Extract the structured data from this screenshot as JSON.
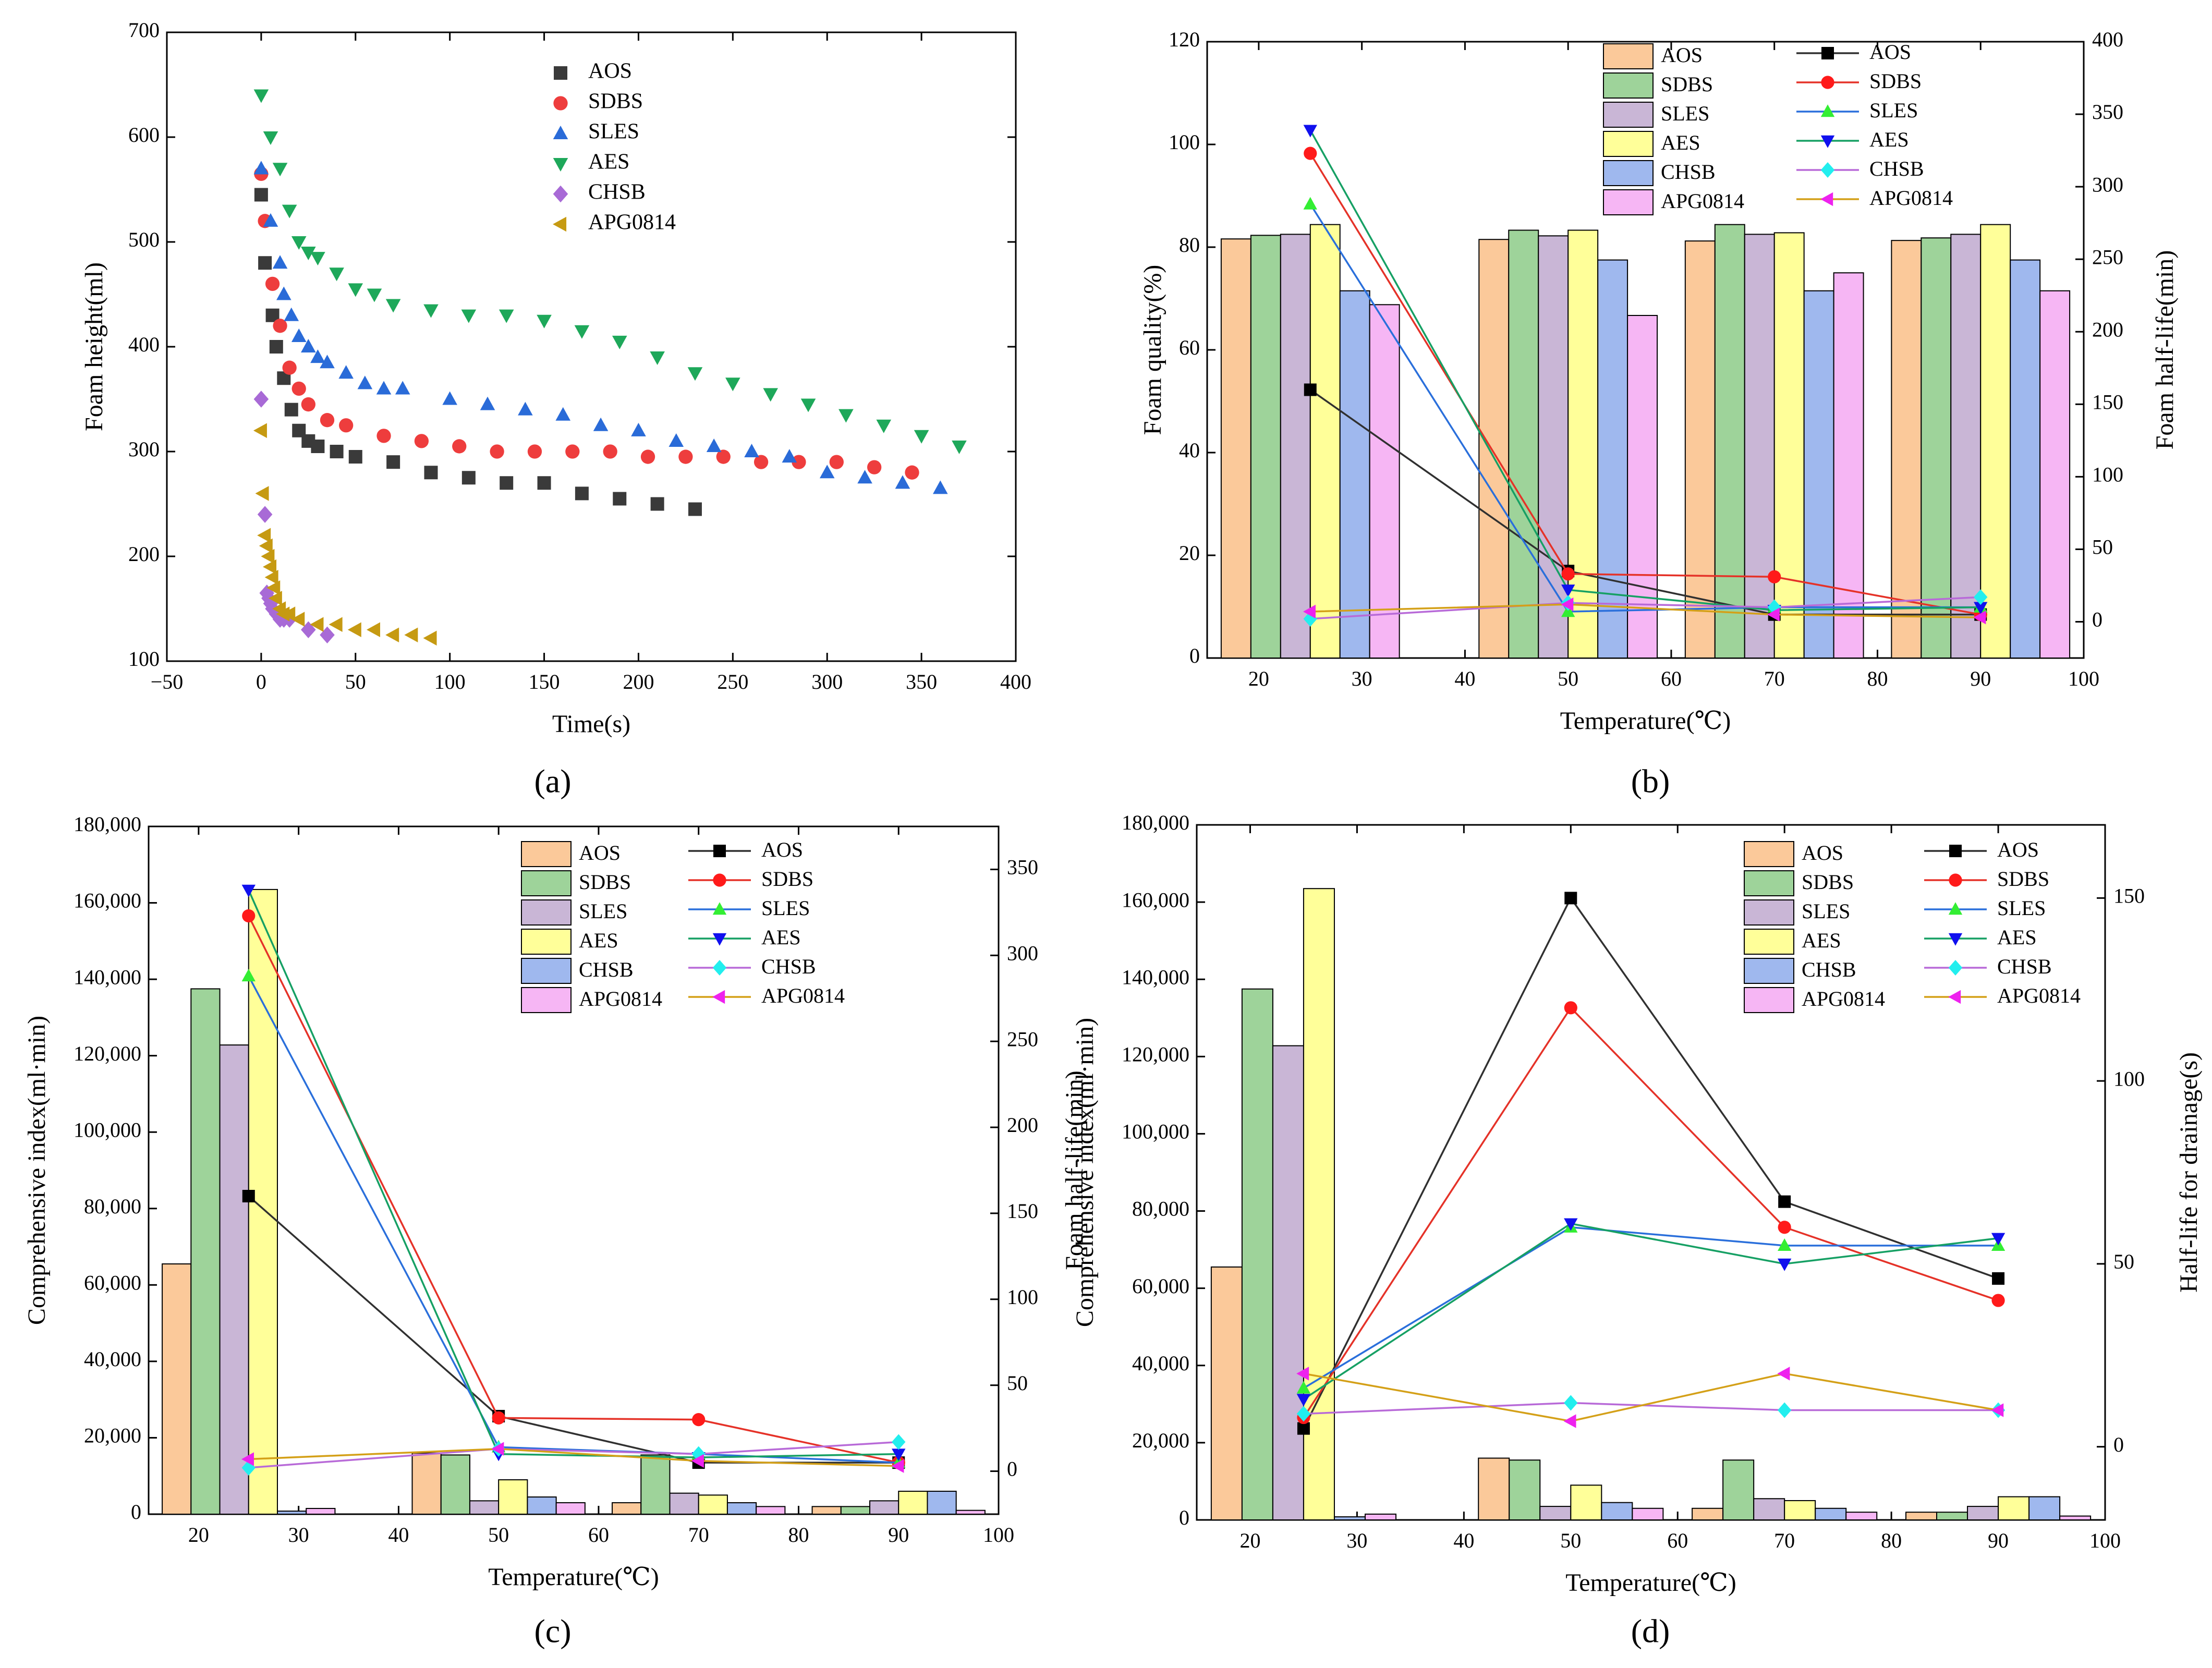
{
  "colors": {
    "AOS": "#3a3a3a",
    "SDBS": "#ee3d3d",
    "SLES": "#2a6bd8",
    "AES": "#1ea85a",
    "CHSB": "#a86ad6",
    "APG0814": "#c69a12",
    "bar_AOS": "#fbc99a",
    "bar_SDBS": "#9ed39a",
    "bar_SLES": "#c9b6d6",
    "bar_AES": "#ffff99",
    "bar_CHSB": "#9fb8ee",
    "bar_APG0814": "#f6b6f4",
    "line_AOS": "#303030",
    "line_SDBS": "#e53228",
    "line_SLES": "#2a6fdb",
    "line_AES": "#16a064",
    "line_CHSB": "#b86ad8",
    "line_APG0814": "#d4a018",
    "mk_AOS": "#000000",
    "mk_SDBS": "#ff1a1a",
    "mk_SLES": "#33ee33",
    "mk_AES": "#1010ee",
    "mk_CHSB": "#22eeee",
    "mk_APG0814": "#ee22ee"
  },
  "chart_data": [
    {
      "id": "a",
      "panel_label": "(a)",
      "type": "scatter",
      "xlabel": "Time(s)",
      "ylabel": "Foam height(ml)",
      "xlim": [
        -50,
        400
      ],
      "ylim": [
        100,
        700
      ],
      "xticks": [
        -50,
        0,
        50,
        100,
        150,
        200,
        250,
        300,
        350,
        400
      ],
      "xtick_labels": [
        "−50",
        "0",
        "50",
        "100",
        "150",
        "200",
        "250",
        "300",
        "350",
        "400"
      ],
      "yticks": [
        100,
        200,
        300,
        400,
        500,
        600,
        700
      ],
      "ytick_labels": [
        "100",
        "200",
        "300",
        "400",
        "500",
        "600",
        "700"
      ],
      "legend": [
        "AOS",
        "SDBS",
        "SLES",
        "AES",
        "CHSB",
        "APG0814"
      ],
      "series": [
        {
          "name": "AOS",
          "marker": "square",
          "x": [
            0,
            2,
            6,
            8,
            12,
            16,
            20,
            25,
            30,
            40,
            50,
            70,
            90,
            110,
            130,
            150,
            170,
            190,
            210,
            230
          ],
          "y": [
            545,
            480,
            430,
            400,
            370,
            340,
            320,
            310,
            305,
            300,
            295,
            290,
            280,
            275,
            270,
            270,
            260,
            255,
            250,
            245
          ]
        },
        {
          "name": "SDBS",
          "marker": "circle",
          "x": [
            0,
            2,
            6,
            10,
            15,
            20,
            25,
            35,
            45,
            65,
            85,
            105,
            125,
            145,
            165,
            185,
            205,
            225,
            245,
            265,
            285,
            305,
            325,
            345
          ],
          "y": [
            565,
            520,
            460,
            420,
            380,
            360,
            345,
            330,
            325,
            315,
            310,
            305,
            300,
            300,
            300,
            300,
            295,
            295,
            295,
            290,
            290,
            290,
            285,
            280
          ]
        },
        {
          "name": "SLES",
          "marker": "triangle-up",
          "x": [
            0,
            5,
            10,
            12,
            16,
            20,
            25,
            30,
            35,
            45,
            55,
            65,
            75,
            100,
            120,
            140,
            160,
            180,
            200,
            220,
            240,
            260,
            280,
            300,
            320,
            340,
            360
          ],
          "y": [
            570,
            520,
            480,
            450,
            430,
            410,
            400,
            390,
            385,
            375,
            365,
            360,
            360,
            350,
            345,
            340,
            335,
            325,
            320,
            310,
            305,
            300,
            295,
            280,
            275,
            270,
            265
          ]
        },
        {
          "name": "AES",
          "marker": "triangle-down",
          "x": [
            0,
            5,
            10,
            15,
            20,
            25,
            30,
            40,
            50,
            60,
            70,
            90,
            110,
            130,
            150,
            170,
            190,
            210,
            230,
            250,
            270,
            290,
            310,
            330,
            350,
            370
          ],
          "y": [
            640,
            600,
            570,
            530,
            500,
            490,
            485,
            470,
            455,
            450,
            440,
            435,
            430,
            430,
            425,
            415,
            405,
            390,
            375,
            365,
            355,
            345,
            335,
            325,
            315,
            305
          ]
        },
        {
          "name": "CHSB",
          "marker": "diamond",
          "x": [
            0,
            2,
            3,
            4,
            5,
            6,
            8,
            10,
            12,
            15,
            25,
            35
          ],
          "y": [
            350,
            240,
            165,
            160,
            155,
            150,
            145,
            140,
            140,
            140,
            130,
            125
          ]
        },
        {
          "name": "APG0814",
          "marker": "triangle-left",
          "x": [
            0,
            1,
            2,
            3,
            4,
            5,
            6,
            7,
            8,
            10,
            12,
            15,
            20,
            30,
            40,
            50,
            60,
            70,
            80,
            90
          ],
          "y": [
            320,
            260,
            220,
            210,
            200,
            190,
            180,
            170,
            160,
            150,
            145,
            145,
            140,
            135,
            135,
            130,
            130,
            125,
            125,
            122
          ]
        }
      ]
    },
    {
      "id": "b",
      "panel_label": "(b)",
      "type": "bar",
      "xlabel": "Temperature(℃)",
      "ylabel": "Foam quality(%)",
      "y2label": "Foam half-life(min)",
      "xlim": [
        15,
        100
      ],
      "ylim": [
        0,
        120
      ],
      "y2lim": [
        -25,
        400
      ],
      "xticks": [
        20,
        30,
        40,
        50,
        60,
        70,
        80,
        90,
        100
      ],
      "xtick_labels": [
        "20",
        "30",
        "40",
        "50",
        "60",
        "70",
        "80",
        "90",
        "100"
      ],
      "yticks": [
        0,
        20,
        40,
        60,
        80,
        100,
        120
      ],
      "ytick_labels": [
        "0",
        "20",
        "40",
        "60",
        "80",
        "100",
        "120"
      ],
      "y2ticks": [
        0,
        50,
        100,
        150,
        200,
        250,
        300,
        350,
        400
      ],
      "y2tick_labels": [
        "0",
        "50",
        "100",
        "150",
        "200",
        "250",
        "300",
        "350",
        "400"
      ],
      "groups": [
        25,
        50,
        70,
        90
      ],
      "bars": [
        {
          "name": "AOS",
          "values": [
            81.6,
            81.5,
            81.2,
            81.3
          ]
        },
        {
          "name": "SDBS",
          "values": [
            82.3,
            83.3,
            84.4,
            81.8
          ]
        },
        {
          "name": "SLES",
          "values": [
            82.5,
            82.2,
            82.5,
            82.5
          ]
        },
        {
          "name": "AES",
          "values": [
            84.4,
            83.3,
            82.8,
            84.4
          ]
        },
        {
          "name": "CHSB",
          "values": [
            71.5,
            77.5,
            71.5,
            77.5
          ]
        },
        {
          "name": "APG0814",
          "values": [
            68.8,
            66.7,
            75.0,
            71.5
          ]
        }
      ],
      "lines": [
        {
          "name": "AOS",
          "marker": "square",
          "values": [
            160,
            35,
            5,
            5
          ]
        },
        {
          "name": "SDBS",
          "marker": "circle",
          "values": [
            323,
            33,
            31,
            5
          ]
        },
        {
          "name": "SLES",
          "marker": "triangle-up",
          "values": [
            288,
            7,
            10,
            10
          ]
        },
        {
          "name": "AES",
          "marker": "triangle-down",
          "values": [
            339,
            22,
            8,
            10
          ]
        },
        {
          "name": "CHSB",
          "marker": "diamond",
          "values": [
            2,
            13,
            10,
            17
          ]
        },
        {
          "name": "APG0814",
          "marker": "triangle-left",
          "values": [
            7,
            12,
            5,
            3
          ]
        }
      ],
      "legend_bars": [
        "AOS",
        "SDBS",
        "SLES",
        "AES",
        "CHSB",
        "APG0814"
      ],
      "legend_lines": [
        "AOS",
        "SDBS",
        "SLES",
        "AES",
        "CHSB",
        "APG0814"
      ]
    },
    {
      "id": "c",
      "panel_label": "(c)",
      "type": "bar",
      "xlabel": "Temperature(℃)",
      "ylabel": "Comprehensive index(ml·min)",
      "y2label": "Foam half-life(min)",
      "xlim": [
        15,
        100
      ],
      "ylim": [
        0,
        180000
      ],
      "y2lim": [
        -25,
        375
      ],
      "xticks": [
        20,
        30,
        40,
        50,
        60,
        70,
        80,
        90,
        100
      ],
      "xtick_labels": [
        "20",
        "30",
        "40",
        "50",
        "60",
        "70",
        "80",
        "90",
        "100"
      ],
      "yticks": [
        0,
        20000,
        40000,
        60000,
        80000,
        100000,
        120000,
        140000,
        160000,
        180000
      ],
      "ytick_labels": [
        "0",
        "20,000",
        "40,000",
        "60,000",
        "80,000",
        "100,000",
        "120,000",
        "140,000",
        "160,000",
        "180,000"
      ],
      "y2ticks": [
        0,
        50,
        100,
        150,
        200,
        250,
        300,
        350
      ],
      "y2tick_labels": [
        "0",
        "50",
        "100",
        "150",
        "200",
        "250",
        "300",
        "350"
      ],
      "groups": [
        25,
        50,
        70,
        90
      ],
      "bars": [
        {
          "name": "AOS",
          "values": [
            65500,
            16000,
            3000,
            2000
          ]
        },
        {
          "name": "SDBS",
          "values": [
            137500,
            15500,
            15500,
            2000
          ]
        },
        {
          "name": "SLES",
          "values": [
            122800,
            3500,
            5500,
            3500
          ]
        },
        {
          "name": "AES",
          "values": [
            163500,
            9000,
            5000,
            6000
          ]
        },
        {
          "name": "CHSB",
          "values": [
            800,
            4500,
            3000,
            6000
          ]
        },
        {
          "name": "APG0814",
          "values": [
            1500,
            3000,
            2000,
            1000
          ]
        }
      ],
      "lines": [
        {
          "name": "AOS",
          "marker": "square",
          "values": [
            160,
            32,
            5,
            5
          ]
        },
        {
          "name": "SDBS",
          "marker": "circle",
          "values": [
            323,
            31,
            30,
            5
          ]
        },
        {
          "name": "SLES",
          "marker": "triangle-up",
          "values": [
            288,
            14,
            10,
            5
          ]
        },
        {
          "name": "AES",
          "marker": "triangle-down",
          "values": [
            338,
            10,
            8,
            10
          ]
        },
        {
          "name": "CHSB",
          "marker": "diamond",
          "values": [
            2,
            13,
            10,
            17
          ]
        },
        {
          "name": "APG0814",
          "marker": "triangle-left",
          "values": [
            7,
            13,
            6,
            3
          ]
        }
      ],
      "legend_bars": [
        "AOS",
        "SDBS",
        "SLES",
        "AES",
        "CHSB",
        "APG0814"
      ],
      "legend_lines": [
        "AOS",
        "SDBS",
        "SLES",
        "AES",
        "CHSB",
        "APG0814"
      ]
    },
    {
      "id": "d",
      "panel_label": "(d)",
      "type": "bar",
      "xlabel": "Temperature(℃)",
      "ylabel": "Comprehensive index(ml·min)",
      "y2label": "Half-life for drainage(s)",
      "xlim": [
        15,
        100
      ],
      "ylim": [
        0,
        180000
      ],
      "y2lim": [
        -20,
        170
      ],
      "xticks": [
        20,
        30,
        40,
        50,
        60,
        70,
        80,
        90,
        100
      ],
      "xtick_labels": [
        "20",
        "30",
        "40",
        "50",
        "60",
        "70",
        "80",
        "90",
        "100"
      ],
      "yticks": [
        0,
        20000,
        40000,
        60000,
        80000,
        100000,
        120000,
        140000,
        160000,
        180000
      ],
      "ytick_labels": [
        "0",
        "20,000",
        "40,000",
        "60,000",
        "80,000",
        "100,000",
        "120,000",
        "140,000",
        "160,000",
        "180,000"
      ],
      "y2ticks": [
        0,
        50,
        100,
        150
      ],
      "y2tick_labels": [
        "0",
        "50",
        "100",
        "150"
      ],
      "groups": [
        25,
        50,
        70,
        90
      ],
      "bars": [
        {
          "name": "AOS",
          "values": [
            65500,
            16000,
            3000,
            2000
          ]
        },
        {
          "name": "SDBS",
          "values": [
            137500,
            15500,
            15500,
            2000
          ]
        },
        {
          "name": "SLES",
          "values": [
            122800,
            3500,
            5500,
            3500
          ]
        },
        {
          "name": "AES",
          "values": [
            163500,
            9000,
            5000,
            6000
          ]
        },
        {
          "name": "CHSB",
          "values": [
            800,
            4500,
            3000,
            6000
          ]
        },
        {
          "name": "APG0814",
          "values": [
            1500,
            3000,
            2000,
            1000
          ]
        }
      ],
      "lines": [
        {
          "name": "AOS",
          "marker": "square",
          "values": [
            5,
            150,
            67,
            46
          ]
        },
        {
          "name": "SDBS",
          "marker": "circle",
          "values": [
            8,
            120,
            60,
            40
          ]
        },
        {
          "name": "SLES",
          "marker": "triangle-up",
          "values": [
            16,
            60,
            55,
            55
          ]
        },
        {
          "name": "AES",
          "marker": "triangle-down",
          "values": [
            13,
            61,
            50,
            57
          ]
        },
        {
          "name": "CHSB",
          "marker": "diamond",
          "values": [
            9,
            12,
            10,
            10
          ]
        },
        {
          "name": "APG0814",
          "marker": "triangle-left",
          "values": [
            20,
            7,
            20,
            10
          ]
        }
      ],
      "legend_bars": [
        "AOS",
        "SDBS",
        "SLES",
        "AES",
        "CHSB",
        "APG0814"
      ],
      "legend_lines": [
        "AOS",
        "SDBS",
        "SLES",
        "AES",
        "CHSB",
        "APG0814"
      ]
    }
  ]
}
